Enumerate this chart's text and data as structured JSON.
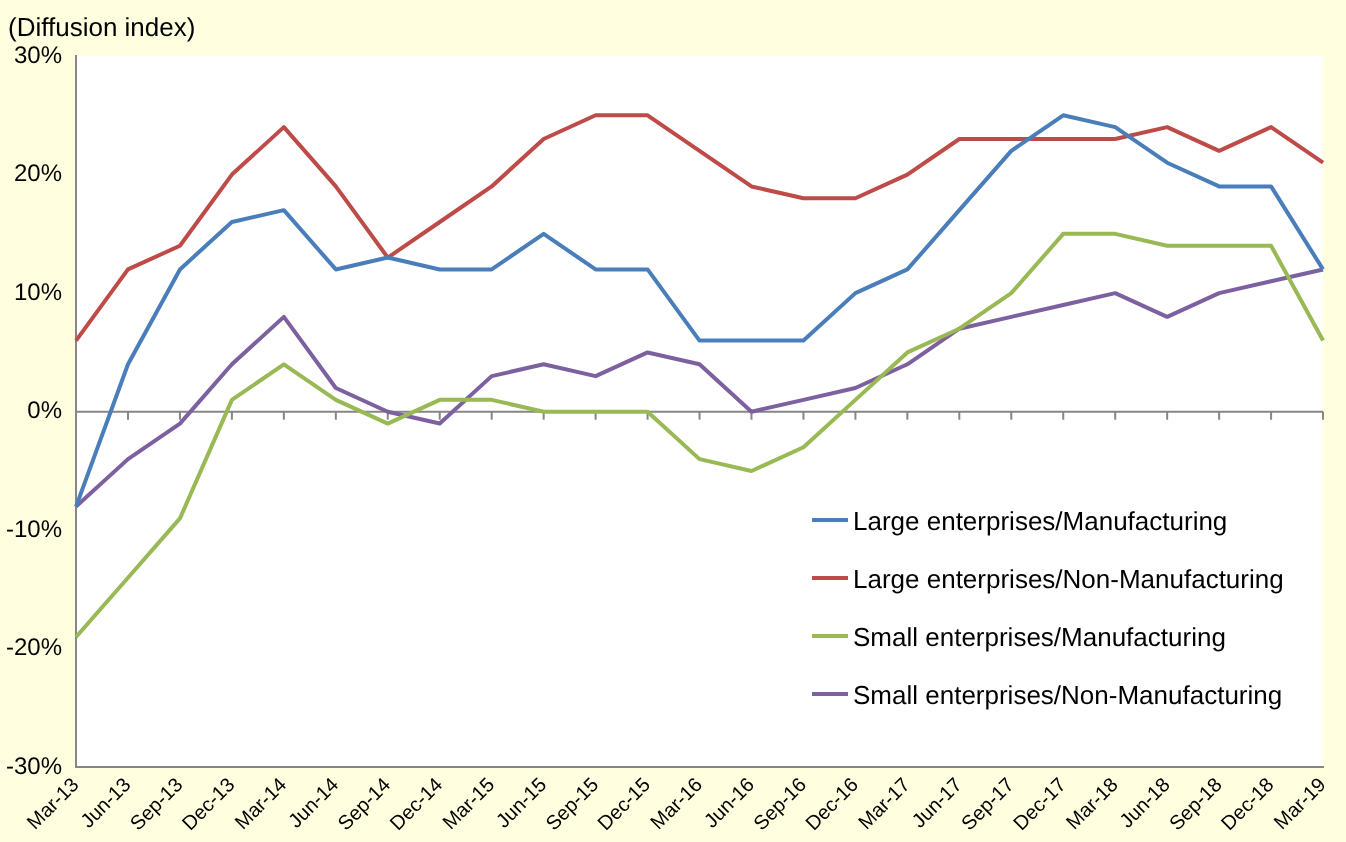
{
  "chart_data": {
    "type": "line",
    "ylabel": "(Diffusion index)",
    "categories": [
      "Mar-13",
      "Jun-13",
      "Sep-13",
      "Dec-13",
      "Mar-14",
      "Jun-14",
      "Sep-14",
      "Dec-14",
      "Mar-15",
      "Jun-15",
      "Sep-15",
      "Dec-15",
      "Mar-16",
      "Jun-16",
      "Sep-16",
      "Dec-16",
      "Mar-17",
      "Jun-17",
      "Sep-17",
      "Dec-17",
      "Mar-18",
      "Jun-18",
      "Sep-18",
      "Dec-18",
      "Mar-19"
    ],
    "series": [
      {
        "name": "Large enterprises/Manufacturing",
        "color": "#4a7ebb",
        "values": [
          -8,
          4,
          12,
          16,
          17,
          12,
          13,
          12,
          12,
          15,
          12,
          12,
          6,
          6,
          6,
          10,
          12,
          17,
          22,
          25,
          24,
          21,
          19,
          19,
          12
        ]
      },
      {
        "name": "Large enterprises/Non-Manufacturing",
        "color": "#be4b48",
        "values": [
          6,
          12,
          14,
          20,
          24,
          19,
          13,
          16,
          19,
          23,
          25,
          25,
          22,
          19,
          18,
          18,
          20,
          23,
          23,
          23,
          23,
          24,
          22,
          24,
          21
        ]
      },
      {
        "name": "Small enterprises/Manufacturing",
        "color": "#98b954",
        "values": [
          -19,
          -14,
          -9,
          1,
          4,
          1,
          -1,
          1,
          1,
          0,
          0,
          0,
          -4,
          -5,
          -3,
          1,
          5,
          7,
          10,
          15,
          15,
          14,
          14,
          14,
          6
        ]
      },
      {
        "name": "Small enterprises/Non-Manufacturing",
        "color": "#7d60a0",
        "values": [
          -8,
          -4,
          -1,
          4,
          8,
          2,
          0,
          -1,
          3,
          4,
          3,
          5,
          4,
          0,
          1,
          2,
          4,
          7,
          8,
          9,
          10,
          8,
          10,
          11,
          12
        ]
      }
    ],
    "ylim": [
      -30,
      30
    ],
    "yticks": [
      {
        "value": -30,
        "label": "-30%"
      },
      {
        "value": -20,
        "label": "-20%"
      },
      {
        "value": -10,
        "label": "-10%"
      },
      {
        "value": 0,
        "label": "0%"
      },
      {
        "value": 10,
        "label": "10%"
      },
      {
        "value": 20,
        "label": "20%"
      },
      {
        "value": 30,
        "label": "30%"
      }
    ],
    "ref_lines": [
      {
        "axis": "y",
        "value": 0,
        "color": "#868686"
      }
    ],
    "grid": false,
    "legend": "bottom right",
    "marker": "none",
    "line_style": "solid"
  }
}
